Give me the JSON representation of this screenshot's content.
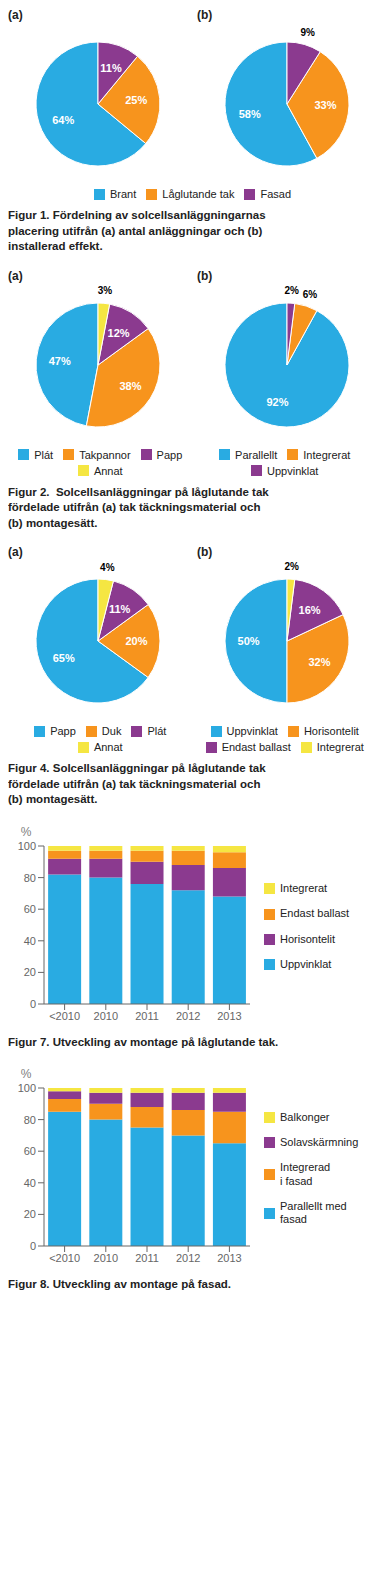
{
  "chart_data": [
    {
      "type": "pie",
      "title": "(a)",
      "categories": [
        "Brant",
        "Låglutande tak",
        "Fasad"
      ],
      "values": [
        64,
        25,
        11
      ],
      "value_labels": [
        "64%",
        "25%",
        "11%"
      ],
      "colors": [
        "#29abe2",
        "#f7941d",
        "#8b3a8f"
      ],
      "data_labels": true,
      "legend": "bottom"
    },
    {
      "type": "pie",
      "title": "(b)",
      "categories": [
        "Brant",
        "Låglutande tak",
        "Fasad"
      ],
      "values": [
        58,
        33,
        9
      ],
      "value_labels": [
        "58%",
        "33%",
        "9%"
      ],
      "colors": [
        "#29abe2",
        "#f7941d",
        "#8b3a8f"
      ],
      "data_labels": true,
      "legend": "bottom",
      "annotations": [
        "Figur 1. Fördelning av solcellsanläggningarnas\nplacering utifrån (a) antal anläggningar och (b)\ninstallerad effekt."
      ]
    },
    {
      "type": "pie",
      "title": "(a)",
      "categories": [
        "Plát",
        "Takpannor",
        "Papp",
        "Annat"
      ],
      "values": [
        47,
        38,
        12,
        3
      ],
      "value_labels": [
        "47%",
        "38%",
        "12%",
        "3%"
      ],
      "colors": [
        "#29abe2",
        "#f7941d",
        "#8b3a8f",
        "#f5e642"
      ],
      "data_labels": true,
      "legend": "bottom"
    },
    {
      "type": "pie",
      "title": "(b)",
      "categories": [
        "Parallellt",
        "Integrerat",
        "Uppvinklat"
      ],
      "values": [
        92,
        6,
        2
      ],
      "value_labels": [
        "92%",
        "6%",
        "2%"
      ],
      "colors": [
        "#29abe2",
        "#f7941d",
        "#8b3a8f"
      ],
      "data_labels": true,
      "legend": "bottom",
      "annotations": [
        "Figur 2.  Solcellsanläggningar på låglutande tak\nfördelade utifrån (a) tak täckningsmaterial och\n(b) montagesätt."
      ]
    },
    {
      "type": "pie",
      "title": "(a)",
      "categories": [
        "Papp",
        "Duk",
        "Plát",
        "Annat"
      ],
      "values": [
        65,
        20,
        11,
        4
      ],
      "value_labels": [
        "65%",
        "20%",
        "11%",
        "4%"
      ],
      "colors": [
        "#29abe2",
        "#f7941d",
        "#8b3a8f",
        "#f5e642"
      ],
      "data_labels": true,
      "legend": "bottom"
    },
    {
      "type": "pie",
      "title": "(b)",
      "categories": [
        "Uppvinklat",
        "Horisontelit",
        "Endast ballast",
        "Integrerat"
      ],
      "values": [
        50,
        32,
        16,
        2
      ],
      "value_labels": [
        "50%",
        "32%",
        "16%",
        "2%"
      ],
      "colors": [
        "#29abe2",
        "#f7941d",
        "#8b3a8f",
        "#f5e642"
      ],
      "data_labels": true,
      "legend": "bottom",
      "annotations": [
        "Figur 4. Solcellsanläggningar på låglutande tak\nfördelade utifrån (a) tak täckningsmaterial och\n(b) montagesätt."
      ]
    },
    {
      "type": "bar",
      "stacked": true,
      "title": "Figur 7. Utveckling av montage på låglutande tak.",
      "categories": [
        "<2010",
        "2010",
        "2011",
        "2012",
        "2013"
      ],
      "series": [
        {
          "name": "Uppvinklat",
          "color": "#29abe2",
          "values": [
            82,
            80,
            76,
            72,
            68
          ]
        },
        {
          "name": "Horisontelit",
          "color": "#8b3a8f",
          "values": [
            10,
            12,
            14,
            16,
            18
          ]
        },
        {
          "name": "Endast ballast",
          "color": "#f7941d",
          "values": [
            5,
            5,
            7,
            9,
            10
          ]
        },
        {
          "name": "Integrerat",
          "color": "#f5e642",
          "values": [
            3,
            3,
            3,
            3,
            4
          ]
        }
      ],
      "ylabel": "%",
      "ylim": [
        0,
        100
      ],
      "yticks": [
        0,
        20,
        40,
        60,
        80,
        100
      ],
      "grid": false,
      "legend": "right"
    },
    {
      "type": "bar",
      "stacked": true,
      "title": "Figur 8. Utveckling av montage på fasad.",
      "categories": [
        "<2010",
        "2010",
        "2011",
        "2012",
        "2013"
      ],
      "series": [
        {
          "name": "Parallellt med\nfasad",
          "color": "#29abe2",
          "values": [
            85,
            80,
            75,
            70,
            65
          ]
        },
        {
          "name": "Integrerad\ni fasad",
          "color": "#f7941d",
          "values": [
            8,
            10,
            13,
            16,
            20
          ]
        },
        {
          "name": "Solavskärmning",
          "color": "#8b3a8f",
          "values": [
            5,
            7,
            9,
            11,
            12
          ]
        },
        {
          "name": "Balkonger",
          "color": "#f5e642",
          "values": [
            2,
            3,
            3,
            3,
            3
          ]
        }
      ],
      "ylabel": "%",
      "ylim": [
        0,
        100
      ],
      "yticks": [
        0,
        20,
        40,
        60,
        80,
        100
      ],
      "grid": false,
      "legend": "right"
    }
  ]
}
